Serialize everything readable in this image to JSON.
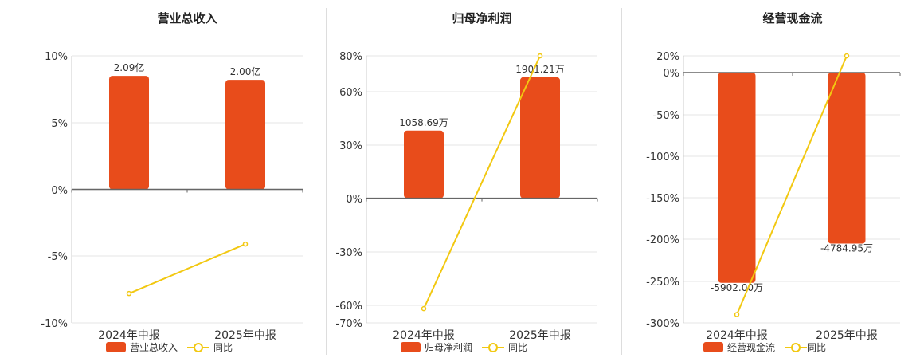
{
  "colors": {
    "bar": "#E84C1B",
    "line": "#F2C811",
    "grid": "#E6E6E6",
    "axis": "#666666",
    "divider": "#BBBBBB"
  },
  "chart_data": [
    {
      "type": "bar",
      "title": "营业总收入",
      "categories": [
        "2024年中报",
        "2025年中报"
      ],
      "yticks": [
        "10%",
        "5%",
        "0%",
        "-5%",
        "-10%"
      ],
      "ylim": [
        -10,
        10
      ],
      "series": [
        {
          "name": "营业总收入",
          "type": "bar",
          "values": [
            8.5,
            8.2
          ],
          "labels": [
            "2.09亿",
            "2.00亿"
          ]
        },
        {
          "name": "同比",
          "type": "line",
          "values": [
            -7.8,
            -4.1
          ]
        }
      ]
    },
    {
      "type": "bar",
      "title": "归母净利润",
      "categories": [
        "2024年中报",
        "2025年中报"
      ],
      "yticks": [
        "80%",
        "60%",
        "30%",
        "0%",
        "-30%",
        "-60%",
        "-70%"
      ],
      "ylim": [
        -70,
        80
      ],
      "series": [
        {
          "name": "归母净利润",
          "type": "bar",
          "values": [
            38,
            68
          ],
          "labels": [
            "1058.69万",
            "1901.21万"
          ]
        },
        {
          "name": "同比",
          "type": "line",
          "values": [
            -62,
            80
          ]
        }
      ]
    },
    {
      "type": "bar",
      "title": "经营现金流",
      "categories": [
        "2024年中报",
        "2025年中报"
      ],
      "yticks": [
        "20%",
        "0%",
        "-50%",
        "-100%",
        "-150%",
        "-200%",
        "-250%",
        "-300%"
      ],
      "ylim": [
        -300,
        20
      ],
      "series": [
        {
          "name": "经营现金流",
          "type": "bar",
          "values": [
            -252,
            -205
          ],
          "labels": [
            "-5902.00万",
            "-4784.95万"
          ]
        },
        {
          "name": "同比",
          "type": "line",
          "values": [
            -290,
            20
          ]
        }
      ]
    }
  ]
}
